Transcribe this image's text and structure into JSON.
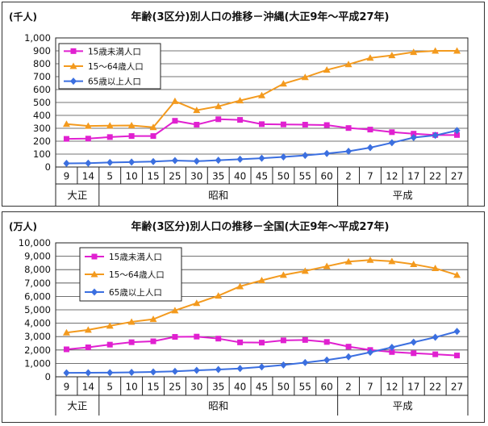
{
  "chart_data": [
    {
      "type": "line",
      "title": "年齢(3区分)別人口の推移－沖縄(大正9年～平成27年)",
      "unit_label": "(千人)",
      "categories": [
        "9",
        "14",
        "5",
        "10",
        "15",
        "25",
        "30",
        "35",
        "40",
        "45",
        "50",
        "55",
        "60",
        "2",
        "7",
        "12",
        "17",
        "22",
        "27"
      ],
      "eras": [
        {
          "label": "大正",
          "count": 2
        },
        {
          "label": "昭和",
          "count": 11
        },
        {
          "label": "平成",
          "count": 6
        }
      ],
      "ylim": [
        0,
        1000
      ],
      "yticks": [
        "0",
        "100",
        "200",
        "300",
        "400",
        "500",
        "600",
        "700",
        "800",
        "900",
        "1,000"
      ],
      "grid": true,
      "legend_position": "top-left",
      "series": [
        {
          "name": "15歳未満人口",
          "color": "#e020d0",
          "marker": "square",
          "values": [
            218,
            220,
            232,
            240,
            240,
            358,
            328,
            370,
            365,
            332,
            330,
            328,
            325,
            302,
            290,
            270,
            258,
            248,
            248
          ]
        },
        {
          "name": "15～64歳人口",
          "color": "#f39a1e",
          "marker": "triangle",
          "values": [
            333,
            318,
            320,
            322,
            308,
            510,
            440,
            470,
            515,
            555,
            645,
            695,
            752,
            795,
            845,
            865,
            890,
            900,
            900
          ]
        },
        {
          "name": "65歳以上人口",
          "color": "#3b6fe0",
          "marker": "diamond",
          "values": [
            28,
            30,
            35,
            38,
            42,
            50,
            45,
            52,
            60,
            68,
            78,
            90,
            105,
            122,
            150,
            188,
            228,
            245,
            283
          ]
        }
      ]
    },
    {
      "type": "line",
      "title": "年齢(3区分)別人口の推移－全国(大正9年～平成27年)",
      "unit_label": "(万人)",
      "categories": [
        "9",
        "14",
        "5",
        "10",
        "15",
        "25",
        "30",
        "35",
        "40",
        "45",
        "50",
        "55",
        "60",
        "2",
        "7",
        "12",
        "17",
        "22",
        "27"
      ],
      "eras": [
        {
          "label": "大正",
          "count": 2
        },
        {
          "label": "昭和",
          "count": 11
        },
        {
          "label": "平成",
          "count": 6
        }
      ],
      "ylim": [
        0,
        10000
      ],
      "yticks": [
        "0",
        "1,000",
        "2,000",
        "3,000",
        "4,000",
        "5,000",
        "6,000",
        "7,000",
        "8,000",
        "9,000",
        "10,000"
      ],
      "grid": true,
      "legend_position": "top-left",
      "series": [
        {
          "name": "15歳未満人口",
          "color": "#e020d0",
          "marker": "square",
          "values": [
            2050,
            2200,
            2400,
            2580,
            2650,
            2980,
            3000,
            2850,
            2570,
            2550,
            2720,
            2750,
            2600,
            2250,
            2000,
            1850,
            1760,
            1680,
            1590
          ]
        },
        {
          "name": "15～64歳人口",
          "color": "#f39a1e",
          "marker": "triangle",
          "values": [
            3300,
            3500,
            3800,
            4100,
            4300,
            4950,
            5500,
            6050,
            6750,
            7200,
            7600,
            7900,
            8250,
            8600,
            8720,
            8620,
            8400,
            8100,
            7600
          ]
        },
        {
          "name": "65歳以上人口",
          "color": "#3b6fe0",
          "marker": "diamond",
          "values": [
            290,
            300,
            310,
            330,
            360,
            410,
            480,
            540,
            620,
            740,
            880,
            1060,
            1250,
            1490,
            1830,
            2200,
            2580,
            2950,
            3390
          ]
        }
      ]
    }
  ]
}
